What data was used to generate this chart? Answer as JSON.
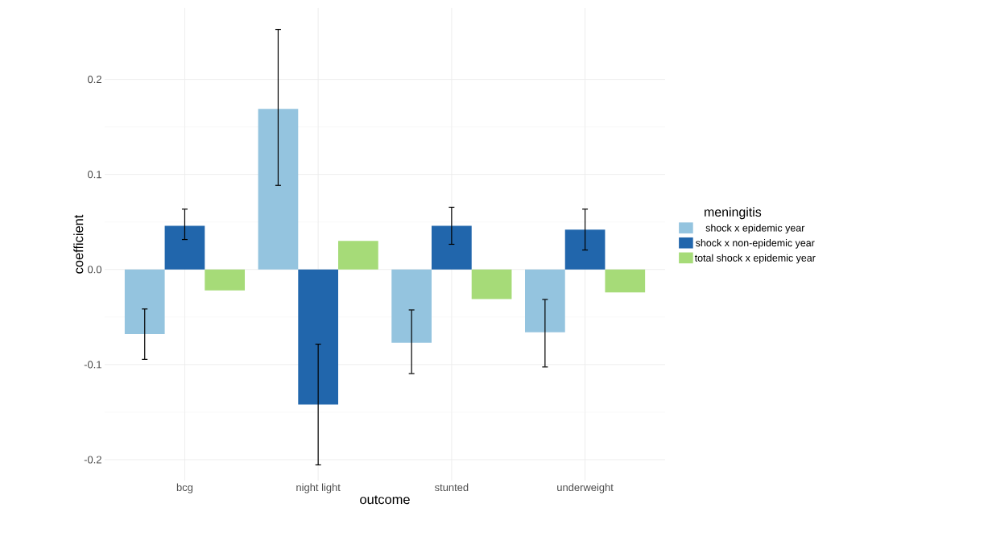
{
  "chart_data": {
    "type": "bar",
    "xlabel": "outcome",
    "ylabel": "coefficient",
    "legend_title": "meningitis",
    "categories": [
      "bcg",
      "night light",
      "stunted",
      "underweight"
    ],
    "series": [
      {
        "name": "shock x epidemic year",
        "color": "#94c4df",
        "values": [
          -0.068,
          0.169,
          -0.077,
          -0.066
        ],
        "errors": [
          [
            -0.095,
            -0.041
          ],
          [
            0.088,
            0.253
          ],
          [
            -0.11,
            -0.042
          ],
          [
            -0.103,
            -0.031
          ]
        ]
      },
      {
        "name": "shock x non-epidemic year",
        "color": "#2166ac",
        "values": [
          0.046,
          -0.142,
          0.046,
          0.042
        ],
        "errors": [
          [
            0.031,
            0.064
          ],
          [
            -0.206,
            -0.078
          ],
          [
            0.026,
            0.066
          ],
          [
            0.02,
            0.064
          ]
        ]
      },
      {
        "name": "total shock x epidemic year",
        "color": "#a6db78",
        "values": [
          -0.022,
          0.03,
          -0.031,
          -0.024
        ],
        "errors": [
          null,
          null,
          null,
          null
        ]
      }
    ],
    "ylim": [
      -0.222,
      0.275
    ],
    "yticks": [
      -0.2,
      -0.1,
      {
        "value": 0,
        "label": "0.0"
      },
      0.1,
      0.2
    ],
    "grid": true,
    "legend": "right"
  }
}
